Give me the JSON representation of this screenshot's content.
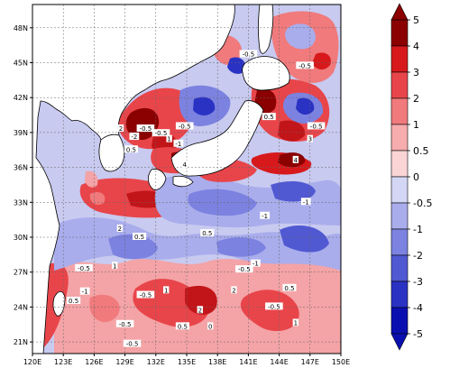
{
  "map": {
    "lat_ticks": [
      "48N",
      "45N",
      "42N",
      "39N",
      "36N",
      "33N",
      "30N",
      "27N",
      "24N",
      "21N"
    ],
    "lon_ticks": [
      "120E",
      "123E",
      "126E",
      "129E",
      "132E",
      "135E",
      "138E",
      "141E",
      "144E",
      "147E",
      "150E"
    ],
    "lat_range": [
      20,
      50
    ],
    "lon_range": [
      120,
      150
    ],
    "land_color": "#ffffff",
    "coastline_color": "#000000"
  },
  "colorbar": {
    "levels": [
      "5",
      "4",
      "3",
      "2",
      "1",
      "0.5",
      "0",
      "-0.5",
      "-1",
      "-2",
      "-3",
      "-4",
      "-5"
    ],
    "colors": [
      "#8b0000",
      "#d7191c",
      "#e8454a",
      "#f07a7c",
      "#f7acae",
      "#fbd5d6",
      "#d4d6f5",
      "#a9adec",
      "#7c82e0",
      "#5058d2",
      "#2a32c4",
      "#0a10b0"
    ]
  },
  "contour_labels": [
    {
      "text": "-0.5",
      "lon": 131.0,
      "lat": 39.3
    },
    {
      "text": "2",
      "lon": 128.6,
      "lat": 39.3
    },
    {
      "text": "-2",
      "lon": 129.9,
      "lat": 38.6
    },
    {
      "text": "0.5",
      "lon": 129.6,
      "lat": 37.5
    },
    {
      "text": "-0.5",
      "lon": 132.5,
      "lat": 38.9
    },
    {
      "text": "-0.5",
      "lon": 134.8,
      "lat": 39.5
    },
    {
      "text": "1",
      "lon": 133.3,
      "lat": 38.4
    },
    {
      "text": "-1",
      "lon": 134.2,
      "lat": 38.0
    },
    {
      "text": "4",
      "lon": 134.8,
      "lat": 36.2
    },
    {
      "text": "-0.5",
      "lon": 141.0,
      "lat": 45.7
    },
    {
      "text": "-0.5",
      "lon": 146.5,
      "lat": 44.7
    },
    {
      "text": "0.5",
      "lon": 143.0,
      "lat": 40.3
    },
    {
      "text": "-0.5",
      "lon": 147.6,
      "lat": 39.5
    },
    {
      "text": "3",
      "lon": 147.0,
      "lat": 38.4
    },
    {
      "text": "4",
      "lon": 145.6,
      "lat": 36.6
    },
    {
      "text": "-1",
      "lon": 146.6,
      "lat": 33.0
    },
    {
      "text": "-1",
      "lon": 142.6,
      "lat": 31.8
    },
    {
      "text": "0.5",
      "lon": 137.0,
      "lat": 30.3
    },
    {
      "text": "2",
      "lon": 128.5,
      "lat": 30.7
    },
    {
      "text": "0.5",
      "lon": 130.4,
      "lat": 30.0
    },
    {
      "text": "1",
      "lon": 128.0,
      "lat": 27.5
    },
    {
      "text": "-0.5",
      "lon": 125.0,
      "lat": 27.3
    },
    {
      "text": "-1",
      "lon": 125.1,
      "lat": 25.3
    },
    {
      "text": "-0.5",
      "lon": 131.0,
      "lat": 25.0
    },
    {
      "text": "0.5",
      "lon": 124.0,
      "lat": 24.5
    },
    {
      "text": "1",
      "lon": 133.0,
      "lat": 25.4
    },
    {
      "text": "-0.5",
      "lon": 129.0,
      "lat": 22.5
    },
    {
      "text": "0.5",
      "lon": 134.6,
      "lat": 22.3
    },
    {
      "text": "-0.5",
      "lon": 140.6,
      "lat": 27.2
    },
    {
      "text": "-1",
      "lon": 141.7,
      "lat": 27.7
    },
    {
      "text": "-0.5",
      "lon": 143.5,
      "lat": 24.0
    },
    {
      "text": "0.5",
      "lon": 145.0,
      "lat": 25.6
    },
    {
      "text": "1",
      "lon": 145.6,
      "lat": 22.6
    },
    {
      "text": "-0.5",
      "lon": 129.7,
      "lat": 20.8
    },
    {
      "text": "0",
      "lon": 137.3,
      "lat": 22.3
    },
    {
      "text": "2",
      "lon": 136.3,
      "lat": 23.7
    },
    {
      "text": "2",
      "lon": 139.6,
      "lat": 25.4
    }
  ]
}
